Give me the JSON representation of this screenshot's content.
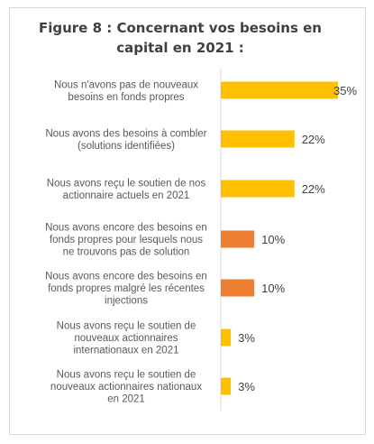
{
  "chart_data": {
    "type": "bar",
    "orientation": "horizontal",
    "title": "Figure 8 : Concernant vos besoins en capital en 2021 :",
    "categories": [
      [
        "Nous n'avons pas de nouveaux",
        "besoins en fonds propres"
      ],
      [
        "Nous avons des besoins à combler",
        "(solutions identifiées)"
      ],
      [
        "Nous avons reçu le soutien de nos",
        "actionnaire actuels en 2021"
      ],
      [
        "Nous avons encore des besoins en",
        "fonds propres pour lesquels nous",
        "ne trouvons pas de solution"
      ],
      [
        "Nous avons encore des besoins en",
        "fonds propres malgré les récentes",
        "injections"
      ],
      [
        "Nous avons reçu le soutien de",
        "nouveaux actionnaires",
        "internationaux en 2021"
      ],
      [
        "Nous avons reçu le soutien de",
        "nouveaux actionnaires nationaux",
        "en 2021"
      ]
    ],
    "values": [
      35,
      22,
      22,
      10,
      10,
      3,
      3
    ],
    "data_labels": [
      "35%",
      "22%",
      "22%",
      "10%",
      "10%",
      "3%",
      "3%"
    ],
    "bar_colors": [
      "#FFC000",
      "#FFC000",
      "#FFC000",
      "#ED7D31",
      "#ED7D31",
      "#FFC000",
      "#FFC000"
    ],
    "xlim": [
      0,
      35
    ],
    "grid": false,
    "legend": "none"
  }
}
